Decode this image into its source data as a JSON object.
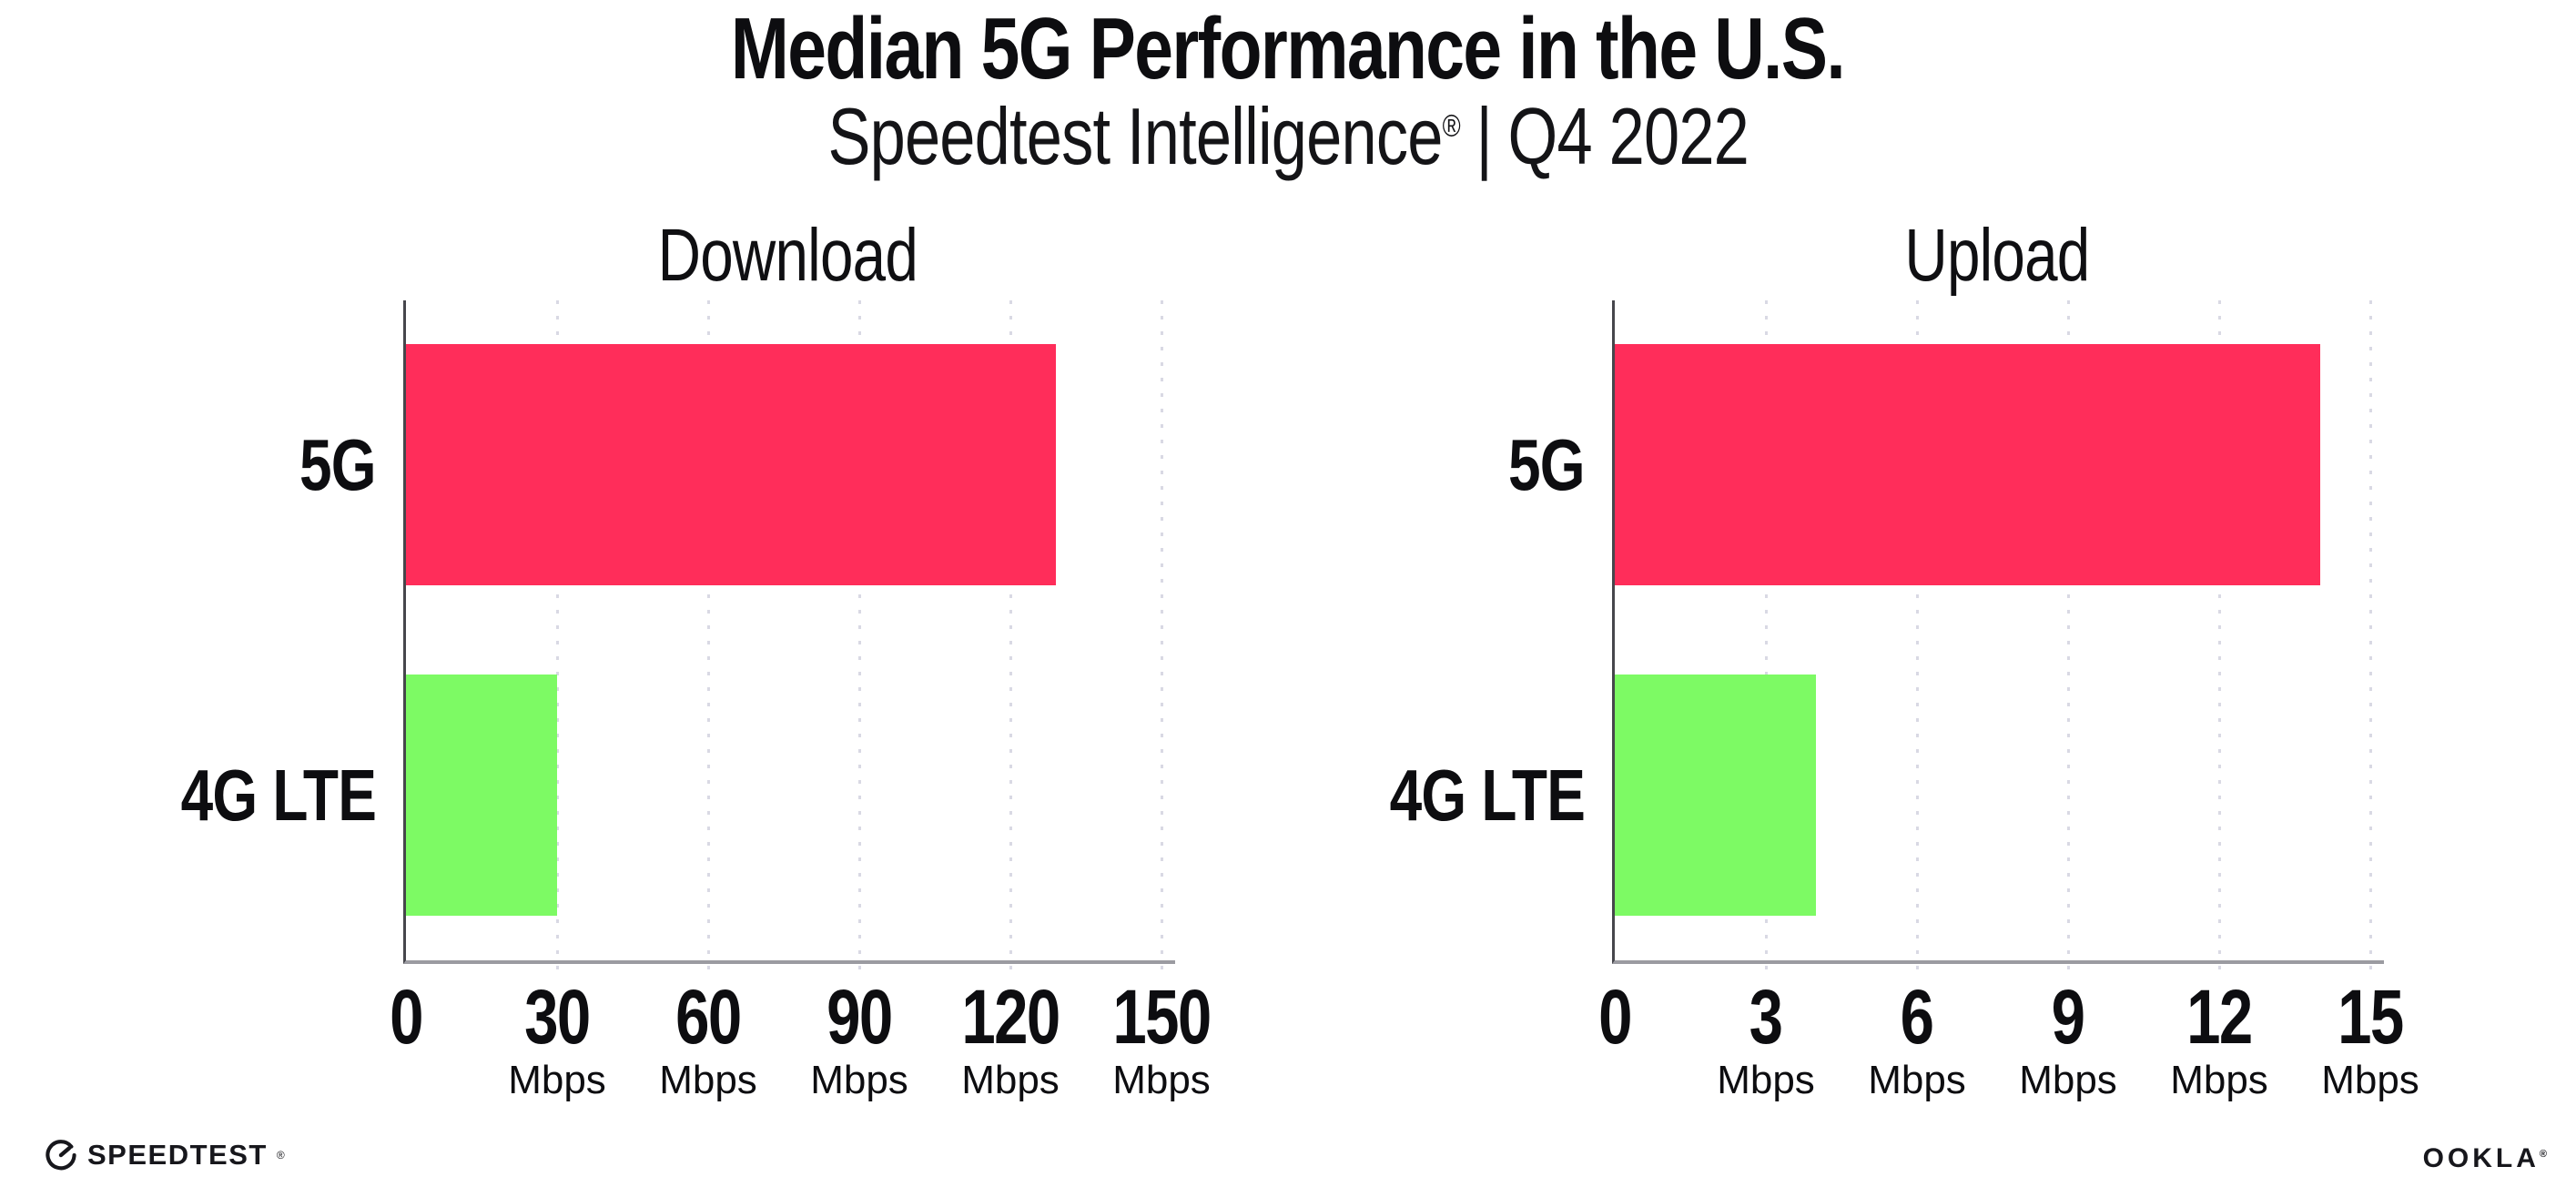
{
  "header": {
    "title": "Median 5G Performance in the U.S.",
    "subtitle": {
      "brand": "Speedtest Intelligence",
      "reg_mark": "®",
      "separator": "|",
      "period": "Q4 2022"
    }
  },
  "chart_data": [
    {
      "type": "bar",
      "orientation": "horizontal",
      "title": "Download",
      "categories": [
        "5G",
        "4G LTE"
      ],
      "values": [
        129,
        30
      ],
      "unit": "Mbps",
      "xlim": [
        0,
        150
      ],
      "xticks": [
        0,
        30,
        60,
        90,
        120,
        150
      ],
      "xtick_unit": "Mbps",
      "bar_colors": [
        "#FF2D5A",
        "#7DFA64"
      ],
      "grid": "dotted-vertical",
      "legend": "none"
    },
    {
      "type": "bar",
      "orientation": "horizontal",
      "title": "Upload",
      "categories": [
        "5G",
        "4G LTE"
      ],
      "values": [
        14,
        4
      ],
      "unit": "Mbps",
      "xlim": [
        0,
        15
      ],
      "xticks": [
        0,
        3,
        6,
        9,
        12,
        15
      ],
      "xtick_unit": "Mbps",
      "bar_colors": [
        "#FF2D5A",
        "#7DFA64"
      ],
      "grid": "dotted-vertical",
      "legend": "none"
    }
  ],
  "footer": {
    "speedtest_label": "SPEEDTEST",
    "speedtest_reg_mark": "®",
    "speedtest_icon": "gauge-icon",
    "ookla_label": "OOKLA",
    "ookla_reg_mark": "®"
  },
  "colors": {
    "background": "#FFFFFF",
    "bar_5g": "#FF2D5A",
    "bar_4g_lte": "#7DFA64",
    "gridline": "#D9D9E4",
    "x_axis_line": "#9B9BA1",
    "y_axis_line": "#46464C",
    "text": "#0D0D10"
  }
}
